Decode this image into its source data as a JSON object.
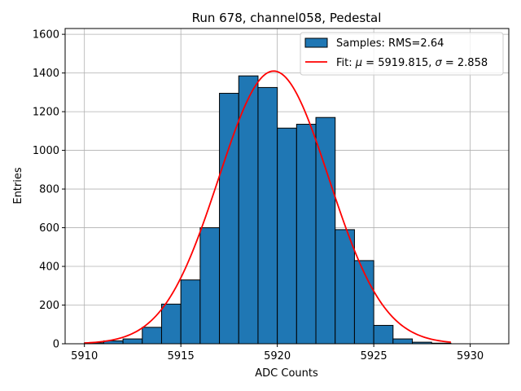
{
  "chart_data": {
    "type": "bar",
    "title": "Run 678, channel058, Pedestal",
    "xlabel": "ADC Counts",
    "ylabel": "Entries",
    "xlim": [
      5909,
      5932
    ],
    "ylim": [
      0,
      1630
    ],
    "xticks": [
      5910,
      5915,
      5920,
      5925,
      5930
    ],
    "yticks": [
      0,
      200,
      400,
      600,
      800,
      1000,
      1200,
      1400,
      1600
    ],
    "grid": true,
    "legend_position": "top-right",
    "bar_color": "#1f77b4",
    "fit_color": "#ff0000",
    "bins": {
      "edges": [
        5910,
        5911,
        5912,
        5913,
        5914,
        5915,
        5916,
        5917,
        5918,
        5919,
        5920,
        5921,
        5922,
        5923,
        5924,
        5925,
        5926,
        5927,
        5928,
        5929
      ],
      "values": [
        5,
        15,
        25,
        85,
        205,
        330,
        600,
        1295,
        1385,
        1325,
        1115,
        1135,
        1170,
        590,
        430,
        95,
        25,
        8,
        3
      ]
    },
    "fit": {
      "mu": 5919.815,
      "sigma": 2.858,
      "amplitude": 1410,
      "x_range": [
        5910,
        5929
      ]
    },
    "legend": {
      "samples_label": "Samples: RMS=2.64",
      "fit_label_prefix": "Fit: ",
      "fit_mu_symbol": "μ",
      "fit_mu_value": " = 5919.815, ",
      "fit_sigma_symbol": "σ",
      "fit_sigma_value": " = 2.858"
    }
  }
}
